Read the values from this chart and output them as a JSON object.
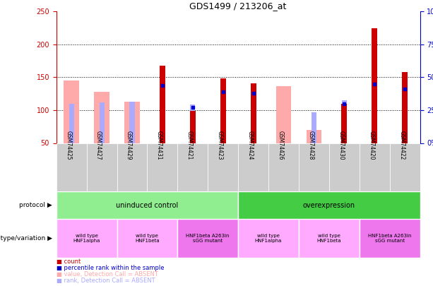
{
  "title": "GDS1499 / 213206_at",
  "samples": [
    "GSM74425",
    "GSM74427",
    "GSM74429",
    "GSM74431",
    "GSM74421",
    "GSM74423",
    "GSM74424",
    "GSM74426",
    "GSM74428",
    "GSM74430",
    "GSM74420",
    "GSM74422"
  ],
  "ylim": [
    50,
    250
  ],
  "yticks_left": [
    50,
    100,
    150,
    200,
    250
  ],
  "right_axis_values": [
    0,
    25,
    50,
    75,
    100
  ],
  "counts": [
    null,
    null,
    null,
    168,
    99,
    148,
    141,
    null,
    null,
    110,
    224,
    158
  ],
  "pink_bars": [
    145,
    128,
    113,
    null,
    null,
    null,
    null,
    136,
    70,
    null,
    null,
    null
  ],
  "blue_small": [
    110,
    112,
    113,
    131,
    108,
    120,
    117,
    null,
    97,
    115,
    138,
    128
  ],
  "blue_marker_pct": [
    null,
    null,
    null,
    44,
    27,
    39,
    38,
    null,
    null,
    30,
    45,
    41
  ],
  "protocol_groups": [
    {
      "label": "uninduced control",
      "start": 0,
      "end": 6,
      "color": "#90ee90"
    },
    {
      "label": "overexpression",
      "start": 6,
      "end": 12,
      "color": "#44cc44"
    }
  ],
  "genotype_groups": [
    {
      "label": "wild type\nHNF1alpha",
      "start": 0,
      "end": 2,
      "color": "#ffaaff"
    },
    {
      "label": "wild type\nHNF1beta",
      "start": 2,
      "end": 4,
      "color": "#ffaaff"
    },
    {
      "label": "HNF1beta A263in\nsGG mutant",
      "start": 4,
      "end": 6,
      "color": "#ee77ee"
    },
    {
      "label": "wild type\nHNF1alpha",
      "start": 6,
      "end": 8,
      "color": "#ffaaff"
    },
    {
      "label": "wild type\nHNF1beta",
      "start": 8,
      "end": 10,
      "color": "#ffaaff"
    },
    {
      "label": "HNF1beta A263in\nsGG mutant",
      "start": 10,
      "end": 12,
      "color": "#ee77ee"
    }
  ],
  "colors": {
    "count_bar": "#cc0000",
    "pink_bar": "#ffaaaa",
    "blue_bar": "#aaaaff",
    "blue_marker": "#0000cc",
    "axis_left_color": "#cc0000",
    "axis_right_color": "#0000cc",
    "sample_bg": "#cccccc"
  },
  "legend_items": [
    {
      "color": "#cc0000",
      "label": "count"
    },
    {
      "color": "#0000cc",
      "label": "percentile rank within the sample"
    },
    {
      "color": "#ffaaaa",
      "label": "value, Detection Call = ABSENT"
    },
    {
      "color": "#aaaaff",
      "label": "rank, Detection Call = ABSENT"
    }
  ]
}
